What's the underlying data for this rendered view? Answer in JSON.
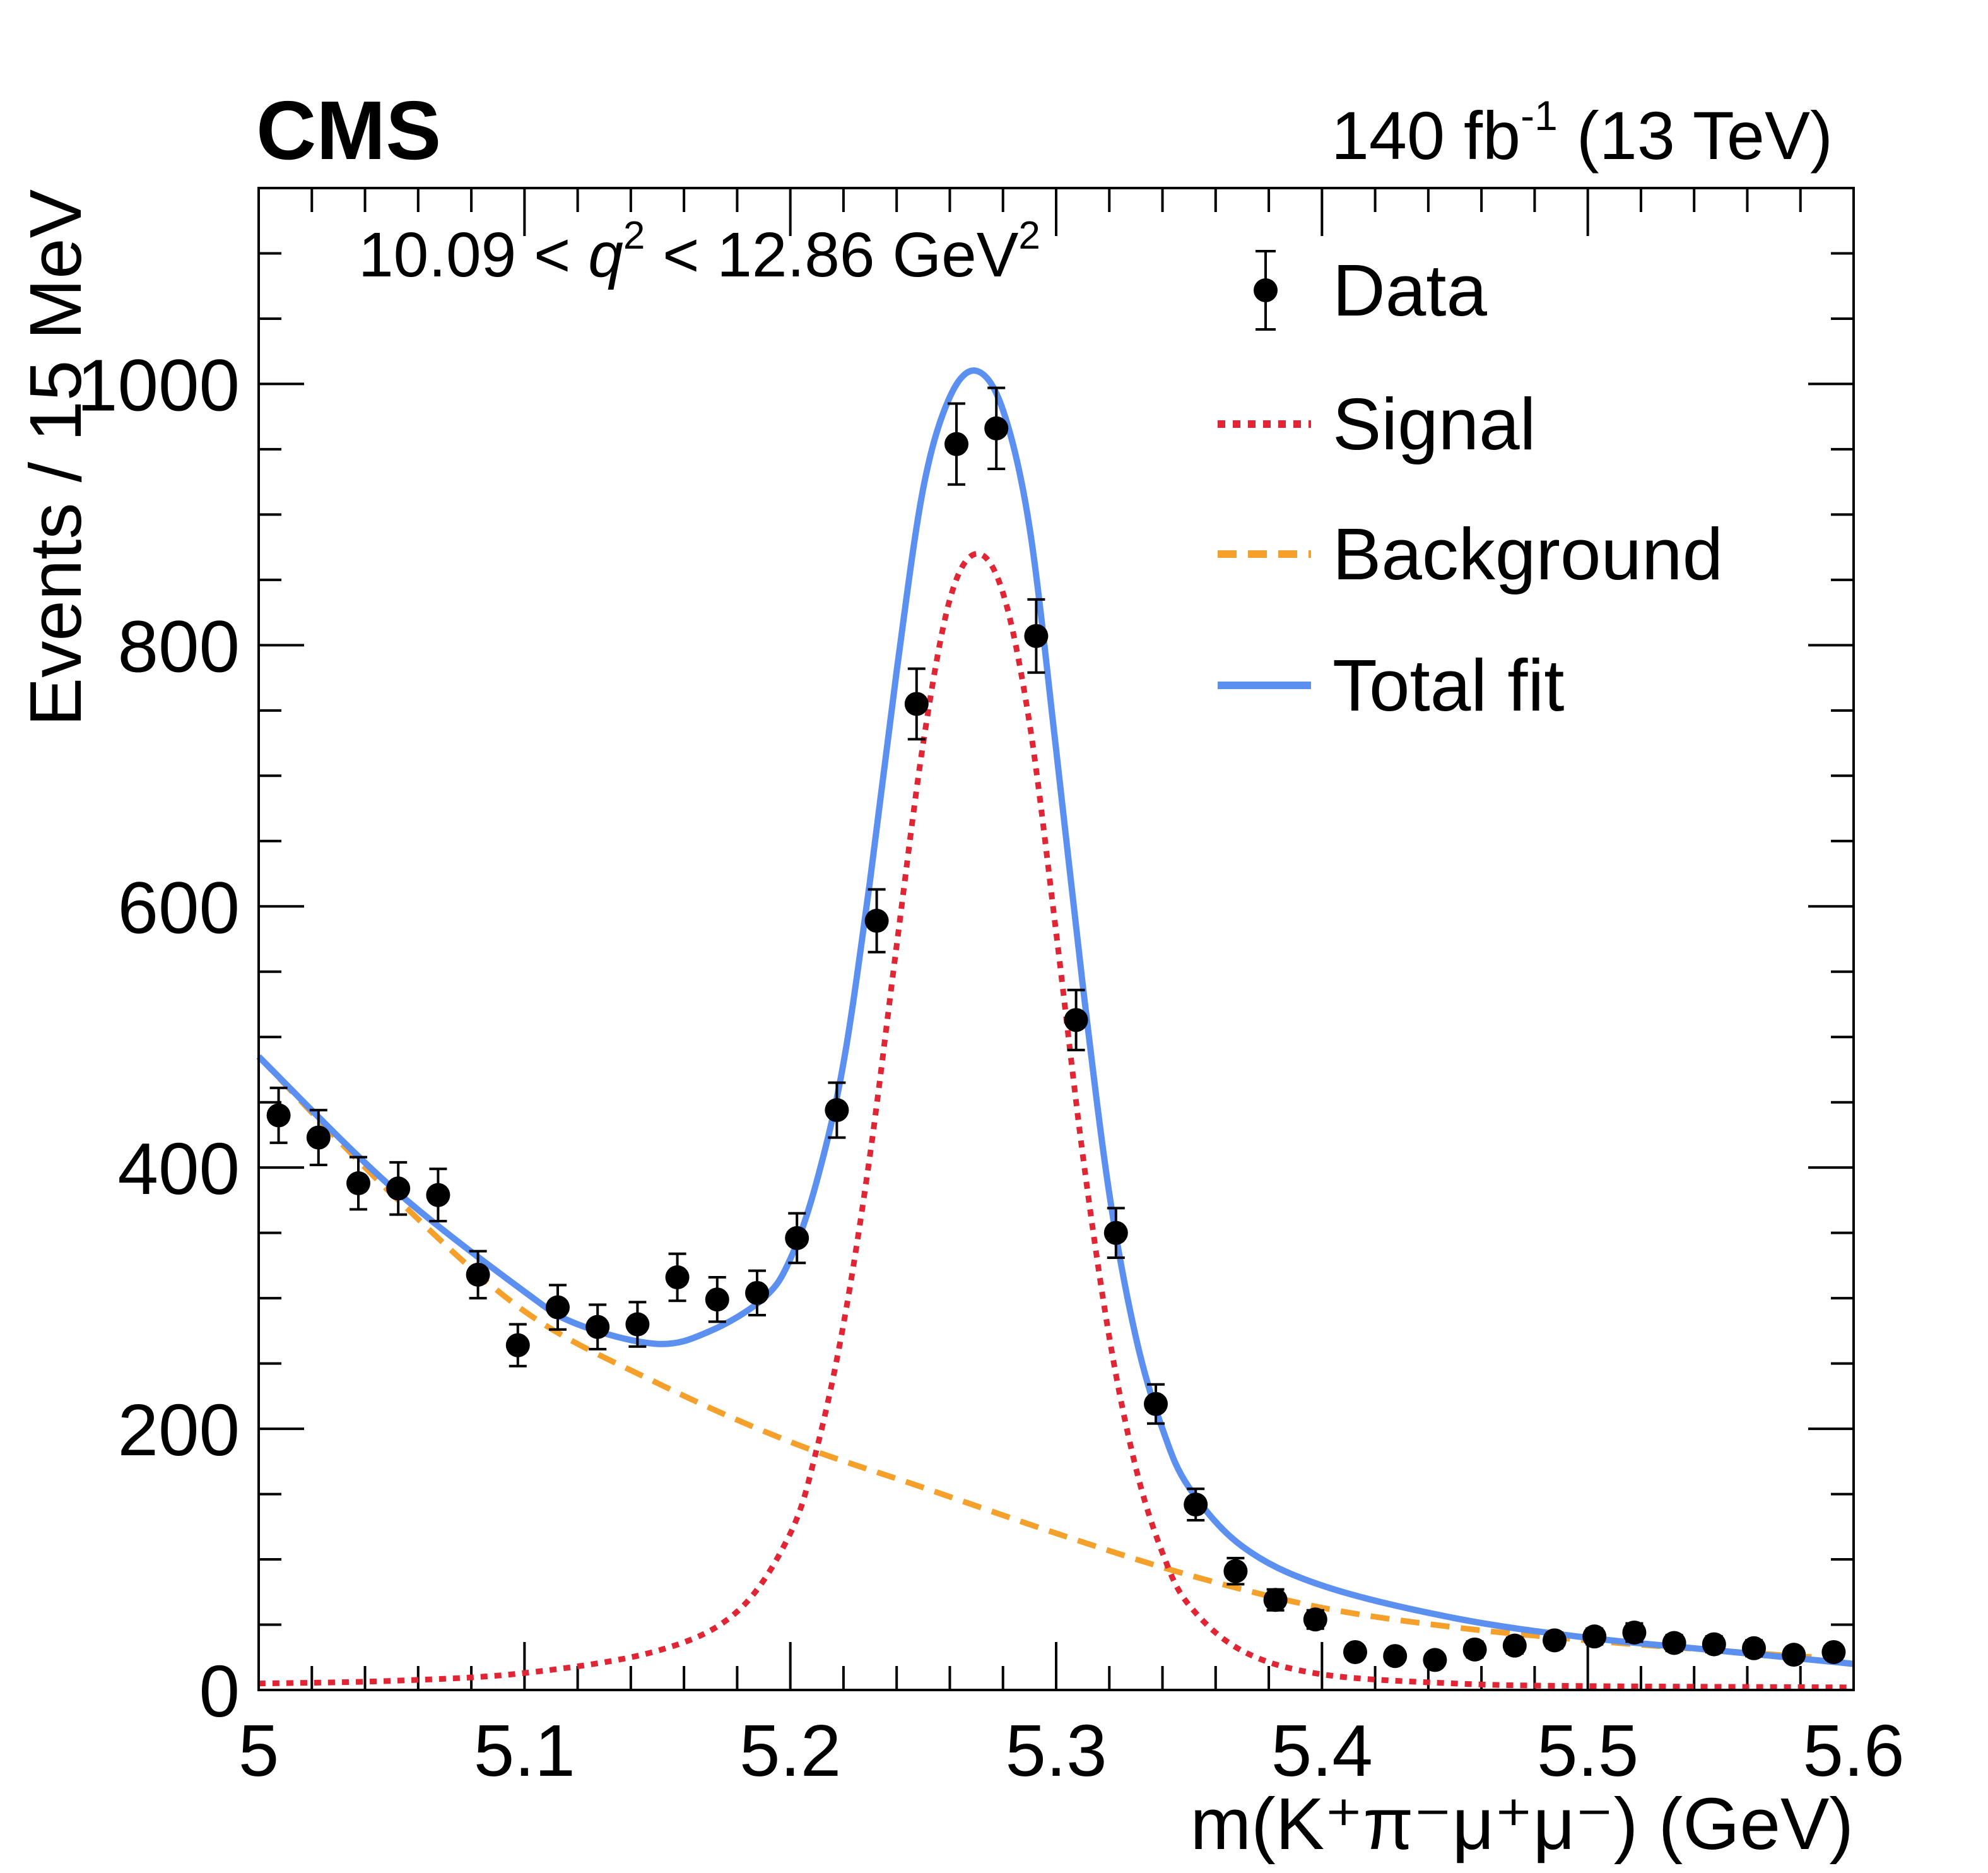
{
  "header": {
    "experiment": "CMS",
    "lumi_value": "140 fb",
    "lumi_exp": "-1",
    "lumi_energy": " (13 TeV)"
  },
  "colors": {
    "signal": "#e02535",
    "background": "#f5a02a",
    "total": "#5b8ff0",
    "data": "#000000"
  },
  "chart_data": {
    "type": "scatter",
    "title": "",
    "xlabel": "m(K⁺π⁻μ⁺μ⁻) (GeV)",
    "ylabel": "Events / 15 MeV",
    "xlim": [
      5.0,
      5.6
    ],
    "ylim": [
      0,
      1150
    ],
    "x_ticks": [
      "5",
      "5.1",
      "5.2",
      "5.3",
      "5.4",
      "5.5",
      "5.6"
    ],
    "y_ticks": [
      "0",
      "200",
      "400",
      "600",
      "800",
      "1000"
    ],
    "annotation": {
      "lo": "10.09 < ",
      "q": "q",
      "q_exp": "2",
      "mid": " < 12.86 GeV",
      "gev_exp": "2"
    },
    "legend_position": "top-right",
    "legend": {
      "data": "Data",
      "signal": "Signal",
      "background": "Background",
      "total": "Total fit"
    },
    "data": {
      "x": [
        5.0075,
        5.0225,
        5.0375,
        5.0525,
        5.0675,
        5.0825,
        5.0975,
        5.1125,
        5.1275,
        5.1425,
        5.1575,
        5.1725,
        5.1875,
        5.2025,
        5.2175,
        5.2325,
        5.2475,
        5.2625,
        5.2775,
        5.2925,
        5.3075,
        5.3225,
        5.3375,
        5.3525,
        5.3675,
        5.3825,
        5.3975,
        5.4125,
        5.4275,
        5.4425,
        5.4575,
        5.4725,
        5.4875,
        5.5025,
        5.5175,
        5.5325,
        5.5475,
        5.5625,
        5.5775,
        5.5925
      ],
      "y": [
        440,
        423,
        388,
        384,
        379,
        318,
        264,
        293,
        278,
        280,
        316,
        299,
        304,
        346,
        444,
        589,
        755,
        954,
        966,
        807,
        513,
        350,
        219,
        142,
        91,
        69,
        54,
        29,
        26,
        23,
        31,
        34,
        38,
        41,
        44,
        36,
        35,
        32,
        27,
        29
      ],
      "yerr": [
        21,
        21,
        20,
        20,
        20,
        18,
        16,
        17,
        17,
        17,
        18,
        17,
        17,
        19,
        21,
        24,
        27,
        31,
        31,
        28,
        23,
        19,
        15,
        12,
        10,
        8,
        7,
        5,
        5,
        5,
        6,
        6,
        6,
        6,
        7,
        6,
        6,
        6,
        5,
        5
      ]
    },
    "signal_curve": {
      "x": [
        5.0,
        5.05,
        5.1,
        5.15,
        5.18,
        5.2,
        5.21,
        5.22,
        5.23,
        5.24,
        5.25,
        5.26,
        5.27,
        5.28,
        5.29,
        5.3,
        5.31,
        5.32,
        5.33,
        5.34,
        5.35,
        5.37,
        5.4,
        5.45,
        5.5,
        5.6
      ],
      "y": [
        5,
        7,
        13,
        30,
        60,
        120,
        185,
        280,
        410,
        570,
        725,
        835,
        870,
        840,
        740,
        580,
        410,
        270,
        170,
        105,
        65,
        30,
        12,
        5,
        3,
        2
      ]
    },
    "background_curve": {
      "x": [
        5.0,
        5.05,
        5.1,
        5.15,
        5.2,
        5.25,
        5.3,
        5.35,
        5.4,
        5.45,
        5.5,
        5.55,
        5.6
      ],
      "y": [
        485,
        380,
        290,
        235,
        190,
        155,
        120,
        88,
        63,
        48,
        38,
        30,
        23
      ]
    },
    "total_curve": {
      "x": [
        5.0,
        5.05,
        5.1,
        5.12,
        5.15,
        5.17,
        5.19,
        5.2,
        5.21,
        5.22,
        5.23,
        5.24,
        5.25,
        5.26,
        5.27,
        5.28,
        5.29,
        5.3,
        5.31,
        5.32,
        5.33,
        5.34,
        5.35,
        5.37,
        5.4,
        5.45,
        5.5,
        5.55,
        5.6
      ],
      "y": [
        485,
        385,
        305,
        280,
        265,
        275,
        300,
        330,
        390,
        480,
        620,
        780,
        920,
        990,
        1010,
        980,
        890,
        720,
        540,
        380,
        270,
        200,
        155,
        110,
        80,
        55,
        40,
        30,
        20
      ]
    }
  }
}
